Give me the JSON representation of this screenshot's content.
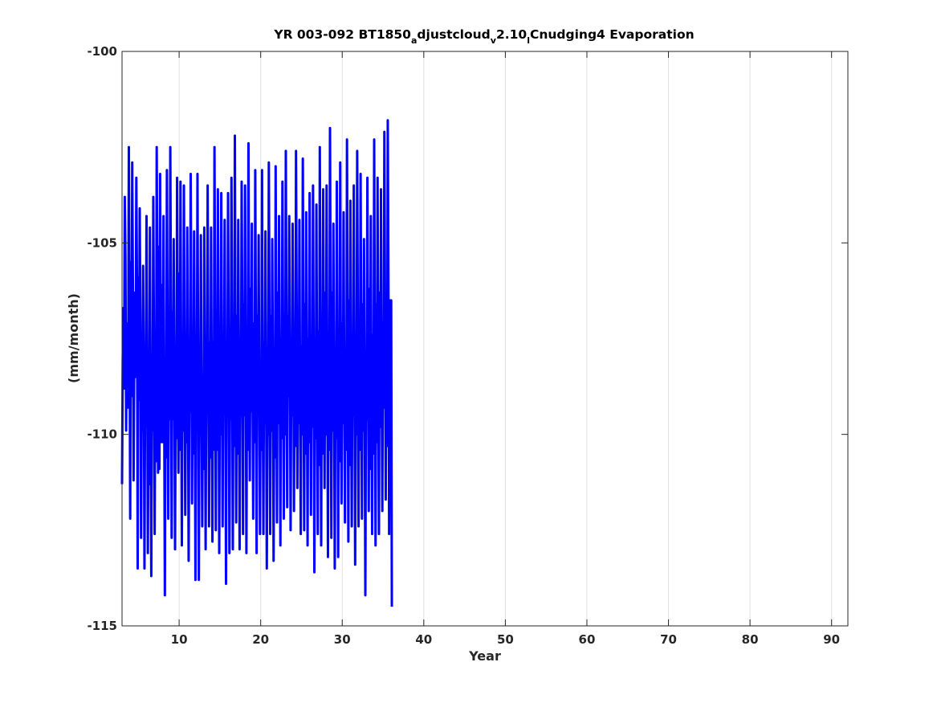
{
  "chart_data": {
    "type": "line",
    "title": {
      "prefix": "YR 003-092 BT1850",
      "sub_a": "a",
      "seg_a": "djustcloud",
      "sub_v": "v",
      "seg_v": "2.10",
      "sub_l": "l",
      "suffix": "Cnudging4 Evaporation"
    },
    "xlabel": "Year",
    "ylabel": "(mm/month)",
    "xlim": [
      3,
      92
    ],
    "ylim": [
      -115,
      -100
    ],
    "xticks": [
      10,
      20,
      30,
      40,
      50,
      60,
      70,
      80,
      90
    ],
    "yticks": [
      -100,
      -105,
      -110,
      -115
    ],
    "grid": "vertical",
    "line_color": "#0000ff",
    "series": [
      {
        "x_start": 3.0,
        "x_step": 0.0833333,
        "values": [
          -111.3,
          -108.1,
          -106.7,
          -108.8,
          -103.8,
          -105.4,
          -109.9,
          -107.2,
          -107.1,
          -109.3,
          -102.5,
          -106.6,
          -112.2,
          -105.5,
          -109.0,
          -102.9,
          -106.2,
          -111.2,
          -108.0,
          -106.3,
          -108.5,
          -103.3,
          -106.1,
          -113.5,
          -105.9,
          -109.1,
          -104.1,
          -107.1,
          -112.7,
          -108.8,
          -109.9,
          -105.6,
          -108.1,
          -113.5,
          -108.7,
          -109.8,
          -104.3,
          -107.9,
          -113.1,
          -109.2,
          -111.3,
          -104.6,
          -108.9,
          -113.7,
          -108.5,
          -109.9,
          -103.8,
          -107.9,
          -112.6,
          -108.0,
          -110.7,
          -102.5,
          -106.4,
          -111.0,
          -105.1,
          -110.9,
          -103.2,
          -107.8,
          -110.2,
          -106.1,
          -110.2,
          -104.3,
          -108.9,
          -114.2,
          -108.7,
          -110.6,
          -103.1,
          -107.3,
          -112.2,
          -108.1,
          -109.6,
          -102.5,
          -107.2,
          -112.7,
          -106.8,
          -109.6,
          -104.9,
          -108.4,
          -113.0,
          -108.6,
          -110.1,
          -103.3,
          -107.6,
          -111.0,
          -105.8,
          -110.4,
          -103.4,
          -108.2,
          -112.9,
          -108.1,
          -109.9,
          -103.5,
          -107.6,
          -112.1,
          -108.2,
          -110.2,
          -104.6,
          -108.5,
          -113.3,
          -108.6,
          -109.4,
          -103.2,
          -107.3,
          -111.8,
          -108.4,
          -110.5,
          -104.7,
          -108.2,
          -113.8,
          -108.6,
          -109.4,
          -103.2,
          -108.2,
          -113.8,
          -107.9,
          -110.0,
          -104.8,
          -109.3,
          -112.4,
          -108.5,
          -110.9,
          -104.6,
          -108.4,
          -113.0,
          -108.0,
          -109.3,
          -103.5,
          -108.3,
          -112.4,
          -107.6,
          -110.6,
          -104.6,
          -108.7,
          -112.8,
          -107.6,
          -110.4,
          -102.5,
          -107.0,
          -112.5,
          -107.4,
          -110.4,
          -103.6,
          -107.6,
          -113.1,
          -108.2,
          -110.0,
          -103.7,
          -108.3,
          -112.4,
          -107.7,
          -109.0,
          -104.4,
          -108.5,
          -113.9,
          -108.1,
          -109.5,
          -103.7,
          -108.0,
          -113.1,
          -108.3,
          -109.6,
          -103.3,
          -107.6,
          -113.0,
          -107.7,
          -110.3,
          -102.2,
          -108.1,
          -112.3,
          -106.9,
          -110.5,
          -104.4,
          -108.5,
          -113.0,
          -108.7,
          -109.5,
          -103.4,
          -107.2,
          -112.6,
          -106.6,
          -109.5,
          -103.5,
          -107.8,
          -113.1,
          -107.7,
          -110.4,
          -102.4,
          -107.8,
          -111.2,
          -106.2,
          -109.4,
          -104.5,
          -109.0,
          -112.2,
          -107.1,
          -110.2,
          -103.1,
          -107.7,
          -113.1,
          -106.9,
          -109.3,
          -104.8,
          -109.0,
          -112.6,
          -108.3,
          -110.4,
          -103.1,
          -108.6,
          -112.6,
          -107.6,
          -109.7,
          -104.7,
          -108.8,
          -113.5,
          -109.0,
          -110.0,
          -102.9,
          -107.6,
          -112.6,
          -106.9,
          -109.9,
          -104.9,
          -108.4,
          -113.3,
          -108.6,
          -110.6,
          -103.0,
          -107.9,
          -112.3,
          -106.3,
          -109.7,
          -104.3,
          -108.2,
          -112.9,
          -107.5,
          -110.1,
          -103.4,
          -107.5,
          -112.2,
          -107.4,
          -110.0,
          -102.6,
          -107.9,
          -111.9,
          -106.9,
          -109.0,
          -104.3,
          -108.0,
          -112.5,
          -108.5,
          -109.5,
          -104.5,
          -107.6,
          -112.0,
          -107.5,
          -110.3,
          -102.6,
          -106.9,
          -111.4,
          -106.9,
          -109.7,
          -104.4,
          -109.2,
          -112.6,
          -107.7,
          -110.0,
          -102.8,
          -107.6,
          -112.5,
          -106.6,
          -110.5,
          -104.2,
          -108.4,
          -112.9,
          -107.5,
          -110.2,
          -103.7,
          -108.3,
          -112.1,
          -107.4,
          -109.8,
          -103.5,
          -108.1,
          -113.6,
          -107.7,
          -110.1,
          -104.0,
          -108.8,
          -112.6,
          -107.3,
          -110.8,
          -102.5,
          -107.1,
          -112.9,
          -107.1,
          -110.5,
          -103.6,
          -107.8,
          -111.4,
          -106.3,
          -110.0,
          -103.5,
          -108.3,
          -113.2,
          -107.6,
          -110.4,
          -102.0,
          -107.4,
          -112.7,
          -106.3,
          -109.9,
          -104.5,
          -108.6,
          -113.5,
          -108.5,
          -110.1,
          -103.4,
          -107.7,
          -113.2,
          -107.3,
          -110.7,
          -102.9,
          -108.4,
          -111.8,
          -107.1,
          -109.7,
          -104.2,
          -108.9,
          -112.3,
          -107.9,
          -110.4,
          -102.3,
          -107.5,
          -112.8,
          -106.5,
          -110.8,
          -103.9,
          -108.2,
          -112.4,
          -107.8,
          -109.5,
          -103.5,
          -108.4,
          -113.4,
          -108.6,
          -110.0,
          -102.6,
          -107.3,
          -112.4,
          -107.3,
          -110.4,
          -103.2,
          -107.9,
          -112.2,
          -106.6,
          -109.9,
          -104.9,
          -108.9,
          -114.2,
          -108.1,
          -109.6,
          -103.3,
          -108.0,
          -112.0,
          -106.2,
          -110.9,
          -104.3,
          -108.9,
          -112.6,
          -107.4,
          -110.5,
          -102.3,
          -107.7,
          -112.9,
          -106.6,
          -110.2,
          -103.3,
          -108.9,
          -112.6,
          -106.3,
          -109.8,
          -103.6,
          -108.4,
          -112.0,
          -107.1,
          -109.3,
          -102.1,
          -106.8,
          -111.7,
          -107.1,
          -110.3,
          -101.8,
          -106.3,
          -112.6,
          -106.5,
          -109.9,
          -106.5,
          -114.5
        ]
      }
    ]
  }
}
